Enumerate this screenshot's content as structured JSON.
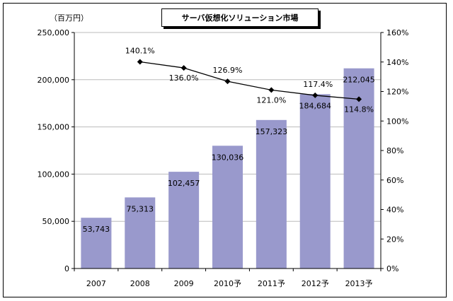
{
  "chart_data": {
    "type": "bar",
    "title": "サーバ仮想化ソリューション市場",
    "ylabel": "（百万円）",
    "categories": [
      "2007",
      "2008",
      "2009",
      "2010予",
      "2011予",
      "2012予",
      "2013予"
    ],
    "values": [
      53743,
      75313,
      102457,
      130036,
      157323,
      184684,
      212045
    ],
    "value_labels": [
      "53,743",
      "75,313",
      "102,457",
      "130,036",
      "157,323",
      "184,684",
      "212,045"
    ],
    "ylim": [
      0,
      250000
    ],
    "yticks": [
      "0",
      "50,000",
      "100,000",
      "150,000",
      "200,000",
      "250,000"
    ],
    "bar_color": "#9999cc",
    "secondary": {
      "type": "line",
      "values": [
        null,
        140.1,
        136.0,
        126.9,
        121.0,
        117.4,
        114.8
      ],
      "value_labels": [
        "",
        "140.1%",
        "136.0%",
        "126.9%",
        "121.0%",
        "117.4%",
        "114.8%"
      ],
      "ylim": [
        0,
        160
      ],
      "yticks": [
        "0%",
        "20%",
        "40%",
        "60%",
        "80%",
        "100%",
        "120%",
        "140%",
        "160%"
      ]
    },
    "grid": true
  }
}
